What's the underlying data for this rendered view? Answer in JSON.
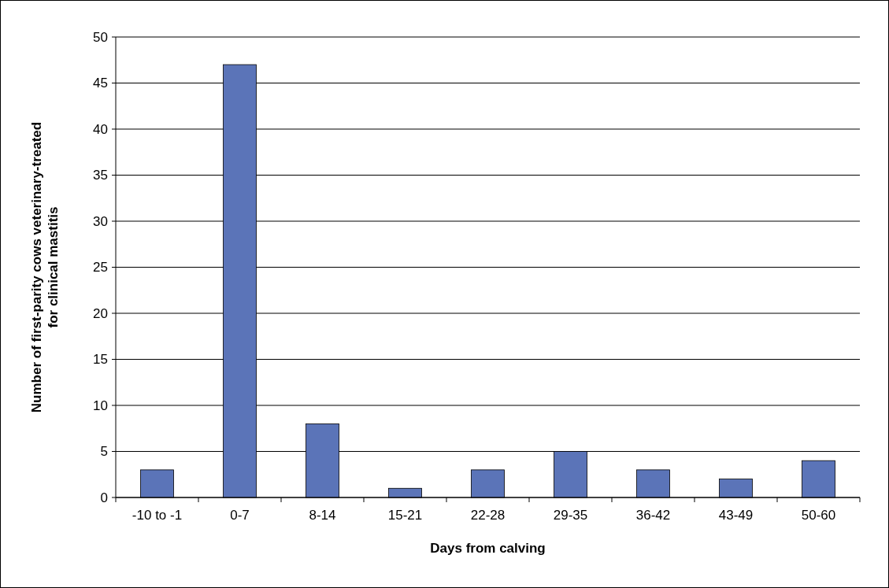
{
  "chart_data": {
    "type": "bar",
    "xlabel": "Days from calving",
    "ylabel": "Number of first-parity cows veterinary-treated for clinical mastitis",
    "categories": [
      "-10 to -1",
      "0-7",
      "8-14",
      "15-21",
      "22-28",
      "29-35",
      "36-42",
      "43-49",
      "50-60"
    ],
    "values": [
      3,
      47,
      8,
      1,
      3,
      5,
      3,
      2,
      4
    ],
    "color": "#5b74b8",
    "ylim": [
      0,
      50
    ],
    "yticks": [
      0,
      5,
      10,
      15,
      20,
      25,
      30,
      35,
      40,
      45,
      50
    ],
    "grid": "y"
  }
}
